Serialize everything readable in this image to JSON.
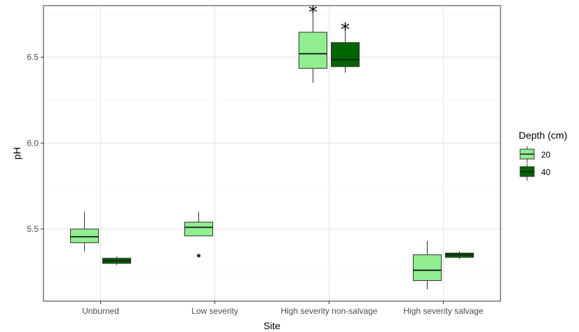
{
  "chart_data": {
    "type": "boxplot",
    "xlabel": "Site",
    "ylabel": "pH",
    "categories": [
      "Unburned",
      "Low severity",
      "High severity non-salvage",
      "High severity salvage"
    ],
    "ylim": [
      5.08,
      6.8
    ],
    "yticks": [
      5.5,
      6.0,
      6.5
    ],
    "ytick_labels": [
      "5.5",
      "6.0",
      "6.5"
    ],
    "grid": true,
    "legend": {
      "title": "Depth (cm)",
      "placement": "right"
    },
    "series": [
      {
        "name": "20",
        "color": "#90ee90",
        "boxes": [
          {
            "category": "Unburned",
            "whisker_low": 5.37,
            "q1": 5.42,
            "median": 5.455,
            "q3": 5.5,
            "whisker_high": 5.6,
            "outliers": []
          },
          {
            "category": "Low severity",
            "whisker_low": 5.46,
            "q1": 5.46,
            "median": 5.51,
            "q3": 5.54,
            "whisker_high": 5.6,
            "outliers": [
              5.345
            ]
          },
          {
            "category": "High severity non-salvage",
            "whisker_low": 6.35,
            "q1": 6.435,
            "median": 6.52,
            "q3": 6.645,
            "whisker_high": 6.78,
            "outliers": []
          },
          {
            "category": "High severity salvage",
            "whisker_low": 5.15,
            "q1": 5.2,
            "median": 5.26,
            "q3": 5.35,
            "whisker_high": 5.43,
            "outliers": []
          }
        ]
      },
      {
        "name": "40",
        "color": "#006400",
        "boxes": [
          {
            "category": "Unburned",
            "whisker_low": 5.29,
            "q1": 5.3,
            "median": 5.315,
            "q3": 5.33,
            "whisker_high": 5.34,
            "outliers": []
          },
          {
            "category": "Low severity",
            "outliers": []
          },
          {
            "category": "High severity non-salvage",
            "whisker_low": 6.41,
            "q1": 6.445,
            "median": 6.485,
            "q3": 6.585,
            "whisker_high": 6.67,
            "outliers": []
          },
          {
            "category": "High severity salvage",
            "whisker_low": 5.325,
            "q1": 5.335,
            "median": 5.35,
            "q3": 5.36,
            "whisker_high": 5.37,
            "outliers": []
          }
        ]
      }
    ],
    "annotations": [
      {
        "text": "*",
        "category": "High severity non-salvage",
        "series": "20",
        "y": 6.79
      },
      {
        "text": "*",
        "category": "High severity non-salvage",
        "series": "40",
        "y": 6.69
      }
    ]
  }
}
